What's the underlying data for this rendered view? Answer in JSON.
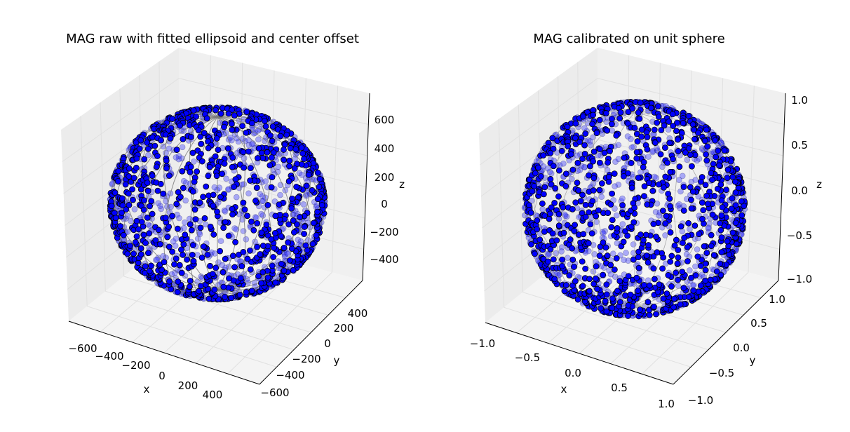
{
  "chart_data": [
    {
      "type": "scatter",
      "projection": "3d",
      "title": "MAG raw with fitted ellipsoid and center offset",
      "xlabel": "x",
      "ylabel": "y",
      "zlabel": "z",
      "xticks": [
        "−600",
        "−400",
        "−200",
        "0",
        "200",
        "400"
      ],
      "yticks": [
        "400",
        "200",
        "0",
        "−200",
        "−400",
        "−600"
      ],
      "zticks": [
        "600",
        "400",
        "200",
        "0",
        "−200",
        "−400"
      ],
      "xlim": [
        -700,
        500
      ],
      "ylim": [
        -650,
        550
      ],
      "zlim": [
        -550,
        750
      ],
      "marker_color": "#0000ff",
      "marker_edge": "#000000",
      "overlay": "fitted ellipsoid wireframe",
      "wireframe_color": "#777777",
      "grid": true
    },
    {
      "type": "scatter",
      "projection": "3d",
      "title": "MAG calibrated on unit sphere",
      "xlabel": "x",
      "ylabel": "y",
      "zlabel": "z",
      "xticks": [
        "−1.0",
        "−0.5",
        "0.0",
        "0.5",
        "1.0"
      ],
      "yticks": [
        "1.0",
        "0.5",
        "0.0",
        "−0.5",
        "−1.0"
      ],
      "zticks": [
        "1.0",
        "0.5",
        "0.0",
        "−0.5",
        "−1.0"
      ],
      "xlim": [
        -1,
        1
      ],
      "ylim": [
        -1,
        1
      ],
      "zlim": [
        -1,
        1
      ],
      "marker_color": "#0000ff",
      "marker_edge": "#000000",
      "overlay": "unit sphere wireframe",
      "wireframe_color": "#999999",
      "grid": true
    }
  ]
}
